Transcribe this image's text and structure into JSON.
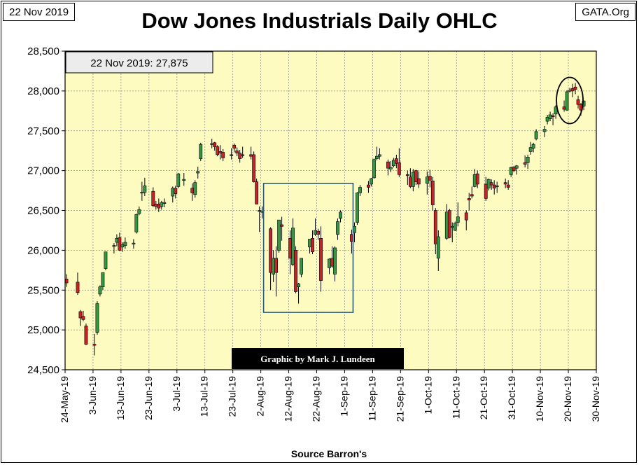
{
  "header": {
    "date_tag": "22 Nov 2019",
    "source_tag": "GATA.Org"
  },
  "chart_data": {
    "type": "ohlc-candlestick",
    "title": "Dow Jones Industrials Daily OHLC",
    "xlabel": "Source Barron's",
    "ylabel": "",
    "ylim": [
      24500,
      28500
    ],
    "yticks": [
      "24,500",
      "25,000",
      "25,500",
      "26,000",
      "26,500",
      "27,000",
      "27,500",
      "28,000",
      "28,500"
    ],
    "xticks": [
      "24-May-19",
      "3-Jun-19",
      "13-Jun-19",
      "23-Jun-19",
      "3-Jul-19",
      "13-Jul-19",
      "23-Jul-19",
      "2-Aug-19",
      "12-Aug-19",
      "22-Aug-19",
      "1-Sep-19",
      "11-Sep-19",
      "21-Sep-19",
      "1-Oct-19",
      "11-Oct-19",
      "21-Oct-19",
      "31-Oct-19",
      "10-Nov-19",
      "20-Nov-19",
      "30-Nov-19"
    ],
    "grid": true,
    "last_value_label": "22 Nov 2019: 27,875",
    "credit": "Graphic by Mark J. Lundeen",
    "annotations": [
      {
        "kind": "rectangle",
        "from_day": 71,
        "to_day": 103,
        "low": 25220,
        "high": 26840
      },
      {
        "kind": "circle",
        "center_day": 180,
        "center_value": 27880
      }
    ],
    "colors": {
      "up": "#2e9b3a",
      "down": "#d21e1e",
      "background": "#fdfbbf",
      "grid": "#909090",
      "box": "#2a5d78"
    },
    "bars": [
      {
        "d": 0,
        "o": 25640,
        "h": 25700,
        "l": 25540,
        "c": 25590
      },
      {
        "d": 4,
        "o": 25600,
        "h": 25720,
        "l": 25440,
        "c": 25470
      },
      {
        "d": 5,
        "o": 25230,
        "h": 25250,
        "l": 25050,
        "c": 25150
      },
      {
        "d": 6,
        "o": 25170,
        "h": 25240,
        "l": 25110,
        "c": 25130
      },
      {
        "d": 7,
        "o": 25050,
        "h": 25080,
        "l": 24810,
        "c": 24820
      },
      {
        "d": 10,
        "o": 24820,
        "h": 24950,
        "l": 24680,
        "c": 24810
      },
      {
        "d": 11,
        "o": 24970,
        "h": 25360,
        "l": 24940,
        "c": 25330
      },
      {
        "d": 12,
        "o": 25450,
        "h": 25560,
        "l": 25420,
        "c": 25540
      },
      {
        "d": 13,
        "o": 25540,
        "h": 25720,
        "l": 25500,
        "c": 25720
      },
      {
        "d": 14,
        "o": 25770,
        "h": 25980,
        "l": 25750,
        "c": 25980
      },
      {
        "d": 17,
        "o": 26050,
        "h": 26090,
        "l": 25960,
        "c": 26060
      },
      {
        "d": 18,
        "o": 26100,
        "h": 26200,
        "l": 26050,
        "c": 26150
      },
      {
        "d": 19,
        "o": 26160,
        "h": 26220,
        "l": 25990,
        "c": 26000
      },
      {
        "d": 20,
        "o": 26040,
        "h": 26100,
        "l": 25980,
        "c": 26070
      },
      {
        "d": 21,
        "o": 26060,
        "h": 26160,
        "l": 26020,
        "c": 26100
      },
      {
        "d": 24,
        "o": 26090,
        "h": 26140,
        "l": 26020,
        "c": 26090
      },
      {
        "d": 25,
        "o": 26230,
        "h": 26460,
        "l": 26210,
        "c": 26450
      },
      {
        "d": 26,
        "o": 26460,
        "h": 26550,
        "l": 26440,
        "c": 26510
      },
      {
        "d": 27,
        "o": 26730,
        "h": 26860,
        "l": 26620,
        "c": 26730
      },
      {
        "d": 28,
        "o": 26730,
        "h": 26910,
        "l": 26680,
        "c": 26810
      },
      {
        "d": 31,
        "o": 26740,
        "h": 26790,
        "l": 26540,
        "c": 26560
      },
      {
        "d": 32,
        "o": 26580,
        "h": 26620,
        "l": 26510,
        "c": 26550
      },
      {
        "d": 33,
        "o": 26580,
        "h": 26650,
        "l": 26480,
        "c": 26530
      },
      {
        "d": 34,
        "o": 26550,
        "h": 26620,
        "l": 26510,
        "c": 26600
      },
      {
        "d": 35,
        "o": 26600,
        "h": 26650,
        "l": 26540,
        "c": 26600
      },
      {
        "d": 38,
        "o": 26680,
        "h": 26800,
        "l": 26600,
        "c": 26780
      },
      {
        "d": 39,
        "o": 26780,
        "h": 26810,
        "l": 26650,
        "c": 26710
      },
      {
        "d": 40,
        "o": 26800,
        "h": 26970,
        "l": 26780,
        "c": 26960
      },
      {
        "d": 42,
        "o": 26880,
        "h": 26970,
        "l": 26810,
        "c": 26890
      },
      {
        "d": 45,
        "o": 26780,
        "h": 26840,
        "l": 26620,
        "c": 26720
      },
      {
        "d": 46,
        "o": 26700,
        "h": 26880,
        "l": 26660,
        "c": 26850
      },
      {
        "d": 47,
        "o": 26970,
        "h": 27050,
        "l": 26900,
        "c": 26990
      },
      {
        "d": 48,
        "o": 27150,
        "h": 27350,
        "l": 27120,
        "c": 27330
      },
      {
        "d": 52,
        "o": 27340,
        "h": 27400,
        "l": 27280,
        "c": 27340
      },
      {
        "d": 53,
        "o": 27350,
        "h": 27360,
        "l": 27250,
        "c": 27300
      },
      {
        "d": 54,
        "o": 27300,
        "h": 27320,
        "l": 27180,
        "c": 27200
      },
      {
        "d": 55,
        "o": 27240,
        "h": 27320,
        "l": 27140,
        "c": 27220
      },
      {
        "d": 56,
        "o": 27230,
        "h": 27270,
        "l": 27120,
        "c": 27160
      },
      {
        "d": 59,
        "o": 27200,
        "h": 27280,
        "l": 27140,
        "c": 27190
      },
      {
        "d": 60,
        "o": 27320,
        "h": 27340,
        "l": 27230,
        "c": 27280
      },
      {
        "d": 61,
        "o": 27250,
        "h": 27290,
        "l": 27180,
        "c": 27220
      },
      {
        "d": 62,
        "o": 27220,
        "h": 27260,
        "l": 27100,
        "c": 27150
      },
      {
        "d": 63,
        "o": 27200,
        "h": 27300,
        "l": 27160,
        "c": 27190
      },
      {
        "d": 66,
        "o": 27200,
        "h": 27300,
        "l": 27140,
        "c": 27180
      },
      {
        "d": 67,
        "o": 27200,
        "h": 27240,
        "l": 26850,
        "c": 26860
      },
      {
        "d": 68,
        "o": 26860,
        "h": 26900,
        "l": 26580,
        "c": 26580
      },
      {
        "d": 69,
        "o": 26500,
        "h": 26550,
        "l": 26230,
        "c": 26500
      },
      {
        "d": 70,
        "o": 26490,
        "h": 26550,
        "l": 26400,
        "c": 26490
      },
      {
        "d": 73,
        "o": 26270,
        "h": 26290,
        "l": 25500,
        "c": 25720
      },
      {
        "d": 74,
        "o": 25700,
        "h": 26000,
        "l": 25600,
        "c": 25900
      },
      {
        "d": 75,
        "o": 25900,
        "h": 26050,
        "l": 25420,
        "c": 25720
      },
      {
        "d": 76,
        "o": 26000,
        "h": 26380,
        "l": 25970,
        "c": 26380
      },
      {
        "d": 77,
        "o": 26320,
        "h": 26420,
        "l": 26120,
        "c": 26300
      },
      {
        "d": 80,
        "o": 26150,
        "h": 26250,
        "l": 25700,
        "c": 25900
      },
      {
        "d": 81,
        "o": 25820,
        "h": 26400,
        "l": 25800,
        "c": 26280
      },
      {
        "d": 82,
        "o": 26000,
        "h": 26050,
        "l": 25460,
        "c": 25480
      },
      {
        "d": 83,
        "o": 25540,
        "h": 25590,
        "l": 25330,
        "c": 25580
      },
      {
        "d": 84,
        "o": 25700,
        "h": 25900,
        "l": 25660,
        "c": 25900
      },
      {
        "d": 87,
        "o": 26040,
        "h": 26140,
        "l": 25960,
        "c": 26140
      },
      {
        "d": 88,
        "o": 26150,
        "h": 26250,
        "l": 25950,
        "c": 25980
      },
      {
        "d": 89,
        "o": 26200,
        "h": 26400,
        "l": 26180,
        "c": 26250
      },
      {
        "d": 90,
        "o": 26240,
        "h": 26270,
        "l": 26130,
        "c": 26200
      },
      {
        "d": 91,
        "o": 26150,
        "h": 26300,
        "l": 25480,
        "c": 25620
      },
      {
        "d": 94,
        "o": 25780,
        "h": 25900,
        "l": 25700,
        "c": 25890
      },
      {
        "d": 95,
        "o": 25900,
        "h": 26050,
        "l": 25780,
        "c": 25800
      },
      {
        "d": 96,
        "o": 25700,
        "h": 26050,
        "l": 25610,
        "c": 26030
      },
      {
        "d": 97,
        "o": 26200,
        "h": 26400,
        "l": 26130,
        "c": 26360
      },
      {
        "d": 98,
        "o": 26400,
        "h": 26500,
        "l": 26350,
        "c": 26480
      },
      {
        "d": 102,
        "o": 26200,
        "h": 26260,
        "l": 25960,
        "c": 26110
      },
      {
        "d": 103,
        "o": 26220,
        "h": 26350,
        "l": 26100,
        "c": 26300
      },
      {
        "d": 104,
        "o": 26350,
        "h": 26730,
        "l": 26320,
        "c": 26720
      },
      {
        "d": 105,
        "o": 26720,
        "h": 26820,
        "l": 26680,
        "c": 26790
      },
      {
        "d": 108,
        "o": 26820,
        "h": 26870,
        "l": 26720,
        "c": 26790
      },
      {
        "d": 109,
        "o": 26830,
        "h": 26910,
        "l": 26800,
        "c": 26900
      },
      {
        "d": 110,
        "o": 26910,
        "h": 27150,
        "l": 26900,
        "c": 27140
      },
      {
        "d": 111,
        "o": 27150,
        "h": 27300,
        "l": 27130,
        "c": 27180
      },
      {
        "d": 112,
        "o": 27180,
        "h": 27280,
        "l": 27140,
        "c": 27200
      },
      {
        "d": 115,
        "o": 27110,
        "h": 27140,
        "l": 26940,
        "c": 27030
      },
      {
        "d": 116,
        "o": 27020,
        "h": 27120,
        "l": 26980,
        "c": 27040
      },
      {
        "d": 117,
        "o": 27060,
        "h": 27160,
        "l": 27040,
        "c": 27130
      },
      {
        "d": 118,
        "o": 27150,
        "h": 27200,
        "l": 27030,
        "c": 27090
      },
      {
        "d": 119,
        "o": 27100,
        "h": 27280,
        "l": 26920,
        "c": 26950
      },
      {
        "d": 122,
        "o": 26950,
        "h": 27000,
        "l": 26820,
        "c": 26940
      },
      {
        "d": 123,
        "o": 26920,
        "h": 27030,
        "l": 26780,
        "c": 26800
      },
      {
        "d": 124,
        "o": 26800,
        "h": 27020,
        "l": 26740,
        "c": 26980
      },
      {
        "d": 125,
        "o": 27000,
        "h": 27010,
        "l": 26820,
        "c": 26860
      },
      {
        "d": 126,
        "o": 26900,
        "h": 26990,
        "l": 26780,
        "c": 26830
      },
      {
        "d": 129,
        "o": 26840,
        "h": 26990,
        "l": 26700,
        "c": 26920
      },
      {
        "d": 130,
        "o": 26930,
        "h": 27010,
        "l": 26790,
        "c": 26880
      },
      {
        "d": 131,
        "o": 26870,
        "h": 26920,
        "l": 26500,
        "c": 26570
      },
      {
        "d": 132,
        "o": 26500,
        "h": 26530,
        "l": 25950,
        "c": 26080
      },
      {
        "d": 133,
        "o": 25900,
        "h": 26250,
        "l": 25740,
        "c": 26170
      },
      {
        "d": 136,
        "o": 26150,
        "h": 26580,
        "l": 26130,
        "c": 26480
      },
      {
        "d": 137,
        "o": 26500,
        "h": 26520,
        "l": 26150,
        "c": 26160
      },
      {
        "d": 138,
        "o": 26300,
        "h": 26350,
        "l": 26100,
        "c": 26300
      },
      {
        "d": 139,
        "o": 26250,
        "h": 26360,
        "l": 26240,
        "c": 26340
      },
      {
        "d": 140,
        "o": 26350,
        "h": 26600,
        "l": 26300,
        "c": 26420
      },
      {
        "d": 143,
        "o": 26470,
        "h": 26500,
        "l": 26250,
        "c": 26380
      },
      {
        "d": 144,
        "o": 26650,
        "h": 26720,
        "l": 26500,
        "c": 26630
      },
      {
        "d": 145,
        "o": 26700,
        "h": 26800,
        "l": 26650,
        "c": 26680
      },
      {
        "d": 146,
        "o": 26800,
        "h": 27020,
        "l": 26790,
        "c": 26950
      },
      {
        "d": 147,
        "o": 26960,
        "h": 27000,
        "l": 26780,
        "c": 26830
      },
      {
        "d": 150,
        "o": 26830,
        "h": 26920,
        "l": 26620,
        "c": 26650
      },
      {
        "d": 151,
        "o": 26780,
        "h": 26900,
        "l": 26750,
        "c": 26890
      },
      {
        "d": 152,
        "o": 26850,
        "h": 26890,
        "l": 26760,
        "c": 26820
      },
      {
        "d": 153,
        "o": 26820,
        "h": 26880,
        "l": 26700,
        "c": 26780
      },
      {
        "d": 154,
        "o": 26800,
        "h": 26860,
        "l": 26720,
        "c": 26810
      },
      {
        "d": 157,
        "o": 26850,
        "h": 26900,
        "l": 26780,
        "c": 26830
      },
      {
        "d": 158,
        "o": 26820,
        "h": 26880,
        "l": 26760,
        "c": 26790
      },
      {
        "d": 159,
        "o": 26950,
        "h": 27050,
        "l": 26920,
        "c": 27040
      },
      {
        "d": 160,
        "o": 27040,
        "h": 27060,
        "l": 26980,
        "c": 27000
      },
      {
        "d": 161,
        "o": 27030,
        "h": 27070,
        "l": 26950,
        "c": 27060
      },
      {
        "d": 164,
        "o": 27100,
        "h": 27190,
        "l": 27040,
        "c": 27080
      },
      {
        "d": 165,
        "o": 27100,
        "h": 27200,
        "l": 27020,
        "c": 27170
      },
      {
        "d": 166,
        "o": 27240,
        "h": 27360,
        "l": 27200,
        "c": 27290
      },
      {
        "d": 167,
        "o": 27280,
        "h": 27350,
        "l": 27230,
        "c": 27330
      },
      {
        "d": 168,
        "o": 27400,
        "h": 27520,
        "l": 27380,
        "c": 27490
      },
      {
        "d": 171,
        "o": 27490,
        "h": 27560,
        "l": 27420,
        "c": 27520
      },
      {
        "d": 172,
        "o": 27620,
        "h": 27700,
        "l": 27580,
        "c": 27670
      },
      {
        "d": 173,
        "o": 27650,
        "h": 27740,
        "l": 27620,
        "c": 27700
      },
      {
        "d": 174,
        "o": 27690,
        "h": 27720,
        "l": 27570,
        "c": 27680
      },
      {
        "d": 175,
        "o": 27710,
        "h": 27820,
        "l": 27650,
        "c": 27800
      },
      {
        "d": 178,
        "o": 27800,
        "h": 27880,
        "l": 27740,
        "c": 27770
      },
      {
        "d": 179,
        "o": 27760,
        "h": 28010,
        "l": 27750,
        "c": 27990
      },
      {
        "d": 180,
        "o": 28010,
        "h": 28040,
        "l": 27980,
        "c": 28010
      },
      {
        "d": 181,
        "o": 28030,
        "h": 28090,
        "l": 27920,
        "c": 28000
      },
      {
        "d": 182,
        "o": 28050,
        "h": 28100,
        "l": 27960,
        "c": 28020
      },
      {
        "d": 183,
        "o": 27890,
        "h": 27940,
        "l": 27780,
        "c": 27830
      },
      {
        "d": 184,
        "o": 27830,
        "h": 27850,
        "l": 27690,
        "c": 27760
      },
      {
        "d": 185,
        "o": 27810,
        "h": 27880,
        "l": 27760,
        "c": 27875
      }
    ]
  }
}
